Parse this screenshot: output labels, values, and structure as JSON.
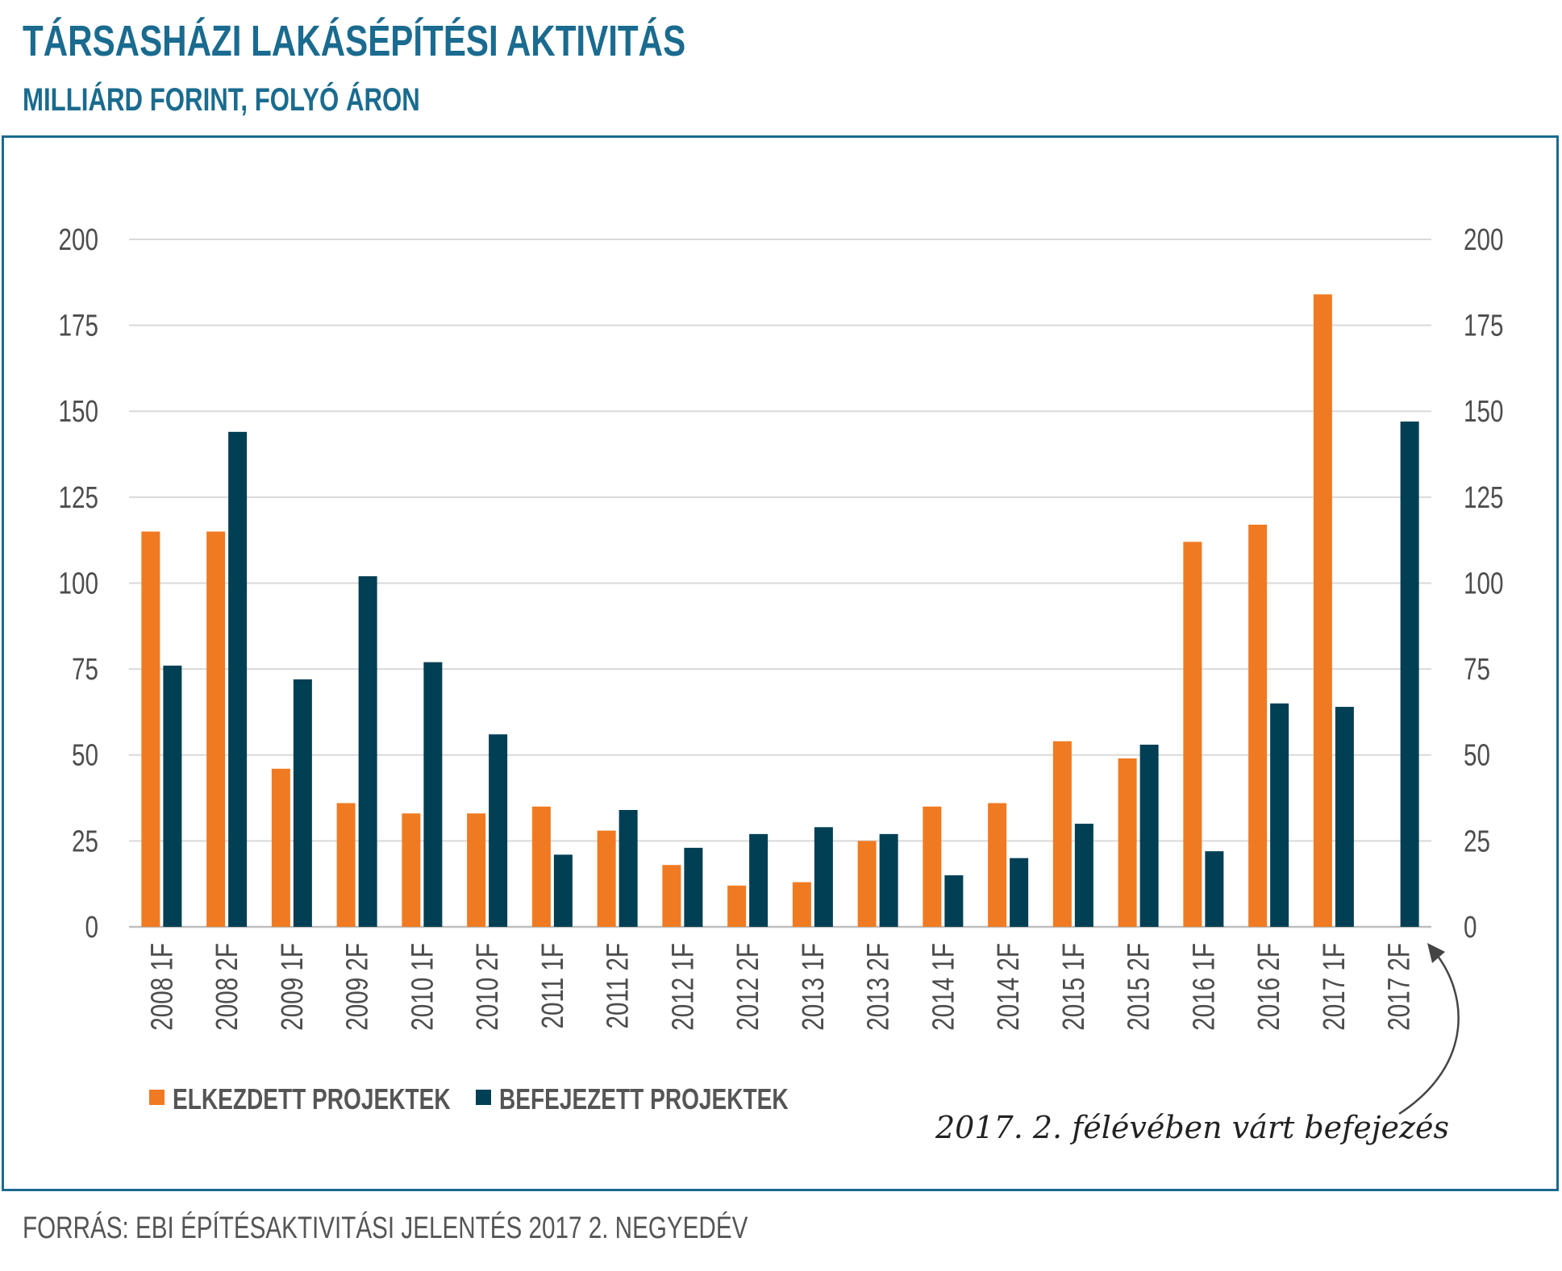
{
  "title": "TÁRSASHÁZI LAKÁSÉPÍTÉSI AKTIVITÁS",
  "subtitle": "MILLIÁRD FORINT, FOLYÓ ÁRON",
  "source": "FORRÁS: EBI ÉPÍTÉSAKTIVITÁSI JELENTÉS 2017 2. NEGYEDÉV",
  "colors": {
    "started": "#f07a22",
    "completed": "#003f54",
    "accent": "#1a6b8f",
    "grid": "#d9d9d9"
  },
  "chart_data": {
    "type": "bar",
    "title": "TÁRSASHÁZI LAKÁSÉPÍTÉSI AKTIVITÁS",
    "ylabel": "MILLIÁRD FORINT, FOLYÓ ÁRON",
    "xlabel": "",
    "ylim": [
      0,
      200
    ],
    "yticks": [
      "0",
      "25",
      "50",
      "75",
      "100",
      "125",
      "150",
      "175",
      "200"
    ],
    "categories": [
      "2008 1F",
      "2008 2F",
      "2009 1F",
      "2009 2F",
      "2010 1F",
      "2010 2F",
      "2011 1F",
      "2011 2F",
      "2012 1F",
      "2012 2F",
      "2013 1F",
      "2013 2F",
      "2014 1F",
      "2014 2F",
      "2015 1F",
      "2015 2F",
      "2016 1F",
      "2016 2F",
      "2017 1F",
      "2017 2F"
    ],
    "series": [
      {
        "name": "ELKEZDETT PROJEKTEK",
        "color": "#f07a22",
        "values": [
          115,
          115,
          46,
          36,
          33,
          33,
          35,
          28,
          18,
          12,
          13,
          25,
          35,
          36,
          54,
          49,
          112,
          117,
          184,
          null
        ]
      },
      {
        "name": "BEFEJEZETT PROJEKTEK",
        "color": "#003f54",
        "values": [
          76,
          144,
          72,
          102,
          77,
          56,
          21,
          34,
          23,
          27,
          29,
          27,
          15,
          20,
          30,
          53,
          22,
          65,
          64,
          147
        ]
      }
    ],
    "legend": "bottom-left",
    "grid": true,
    "annotation": "2017. 2. félévében várt befejezés"
  }
}
